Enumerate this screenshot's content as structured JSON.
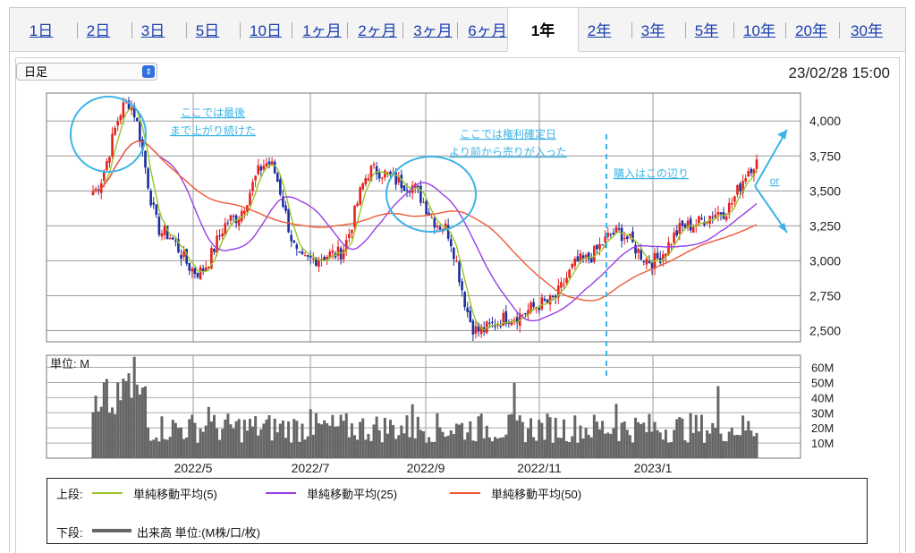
{
  "tabs": [
    {
      "label": "1日",
      "active": false
    },
    {
      "label": "2日",
      "active": false
    },
    {
      "label": "3日",
      "active": false
    },
    {
      "label": "5日",
      "active": false
    },
    {
      "label": "10日",
      "active": false
    },
    {
      "label": "1ヶ月",
      "active": false
    },
    {
      "label": "2ヶ月",
      "active": false
    },
    {
      "label": "3ヶ月",
      "active": false
    },
    {
      "label": "6ヶ月",
      "active": false
    },
    {
      "label": "1年",
      "active": true
    },
    {
      "label": "2年",
      "active": false
    },
    {
      "label": "3年",
      "active": false
    },
    {
      "label": "5年",
      "active": false
    },
    {
      "label": "10年",
      "active": false
    },
    {
      "label": "20年",
      "active": false
    },
    {
      "label": "30年",
      "active": false
    }
  ],
  "interval_select": {
    "value": "日足"
  },
  "timestamp": "23/02/28 15:00",
  "colors": {
    "up": "#e8201c",
    "down": "#1b2fa0",
    "ma5": "#9ac42c",
    "ma25": "#9a3ee6",
    "ma50": "#ee5a35",
    "volume": "#666666",
    "annotation": "#3db4e6",
    "link": "#1a3fb0"
  },
  "chart_data": [
    {
      "type": "candlestick",
      "name": "price",
      "y_ticks": [
        "2,500",
        "2,750",
        "3,000",
        "3,250",
        "3,500",
        "3,750",
        "4,000"
      ],
      "y_tick_values": [
        2500,
        2750,
        3000,
        3250,
        3500,
        3750,
        4000
      ],
      "ylim": [
        2420,
        4200
      ],
      "x_tick_labels": [
        "2022/5",
        "2022/7",
        "2022/9",
        "2022/11",
        "2023/1"
      ],
      "grid": true,
      "key_points": [
        {
          "date": "2022/3",
          "close": 3500
        },
        {
          "date": "2022/3",
          "close": 4130
        },
        {
          "date": "2022/4",
          "close": 3200
        },
        {
          "date": "2022/4",
          "close": 2920
        },
        {
          "date": "2022/5",
          "close": 3300
        },
        {
          "date": "2022/6",
          "close": 3700
        },
        {
          "date": "2022/6",
          "close": 3000
        },
        {
          "date": "2022/7",
          "close": 3050
        },
        {
          "date": "2022/8",
          "close": 3650
        },
        {
          "date": "2022/9",
          "close": 3550
        },
        {
          "date": "2022/9",
          "close": 3250
        },
        {
          "date": "2022/10",
          "close": 2500
        },
        {
          "date": "2022/10",
          "close": 2600
        },
        {
          "date": "2022/11",
          "close": 2700
        },
        {
          "date": "2022/12",
          "close": 3000
        },
        {
          "date": "2022/12",
          "close": 3200
        },
        {
          "date": "2023/1",
          "close": 3000
        },
        {
          "date": "2023/1",
          "close": 3250
        },
        {
          "date": "2023/2",
          "close": 3350
        },
        {
          "date": "2023/2",
          "close": 3700
        }
      ],
      "moving_averages": [
        {
          "label": "単純移動平均(5)",
          "period": 5
        },
        {
          "label": "単純移動平均(25)",
          "period": 25
        },
        {
          "label": "単純移動平均(50)",
          "period": 50
        }
      ]
    },
    {
      "type": "bar",
      "name": "volume",
      "unit_label": "単位: M",
      "y_ticks": [
        "10M",
        "20M",
        "30M",
        "40M",
        "50M",
        "60M"
      ],
      "y_tick_values": [
        10,
        20,
        30,
        40,
        50,
        60
      ],
      "ylim": [
        0,
        68
      ],
      "typical_range": [
        10,
        30
      ],
      "peak": 67
    }
  ],
  "annotations": {
    "a1_line1": "ここでは最後",
    "a1_line2": "まで上がり続けた",
    "a2_line1": "ここでは権利確定日",
    "a2_line2": "より前から売りが入った",
    "a3": "購入はこの辺り",
    "a4": "or"
  },
  "legend": {
    "upper_label": "上段:",
    "lower_label": "下段:",
    "ma5": "単純移動平均(5)",
    "ma25": "単純移動平均(25)",
    "ma50": "単純移動平均(50)",
    "volume": "出来高 単位:(M株/口/枚)"
  }
}
